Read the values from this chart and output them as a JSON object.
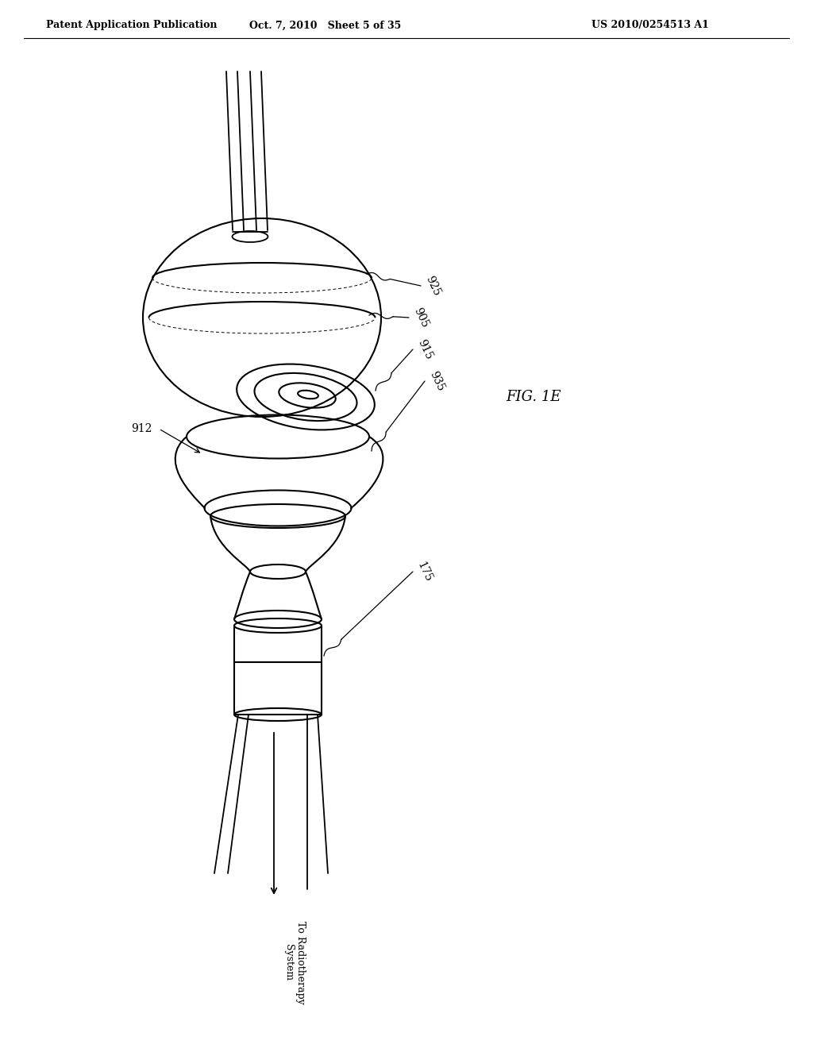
{
  "bg_color": "#ffffff",
  "header_left": "Patent Application Publication",
  "header_mid": "Oct. 7, 2010   Sheet 5 of 35",
  "header_right": "US 2010/0254513 A1",
  "fig_label": "FIG. 1E",
  "label_925": "925",
  "label_905": "905",
  "label_915": "915",
  "label_912": "912",
  "label_935": "935",
  "label_175": "175",
  "label_bottom": "To Radiotherapy\nSystem",
  "line_color": "#000000",
  "line_width": 1.5
}
